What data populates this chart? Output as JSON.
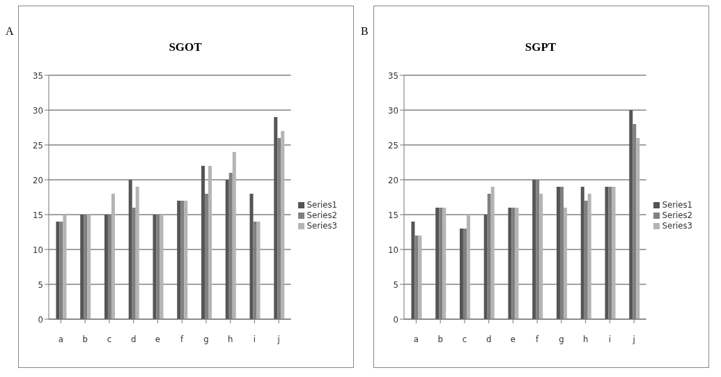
{
  "chart_data": [
    {
      "type": "bar",
      "title": "SGOT",
      "annotations": [
        "A"
      ],
      "categories": [
        "a",
        "b",
        "c",
        "d",
        "e",
        "f",
        "g",
        "h",
        "i",
        "j"
      ],
      "series": [
        {
          "name": "Series1",
          "color": "#555555",
          "values": [
            14,
            15,
            15,
            20,
            15,
            17,
            22,
            20,
            18,
            29
          ]
        },
        {
          "name": "Series2",
          "color": "#808080",
          "values": [
            14,
            15,
            15,
            16,
            15,
            17,
            18,
            21,
            14,
            26
          ]
        },
        {
          "name": "Series3",
          "color": "#b4b4b4",
          "values": [
            15,
            15,
            18,
            19,
            15,
            17,
            22,
            24,
            14,
            27
          ]
        }
      ],
      "ylim": [
        0,
        35
      ],
      "yticks": [
        0,
        5,
        10,
        15,
        20,
        25,
        30,
        35
      ],
      "grid": "y",
      "legend": "right"
    },
    {
      "type": "bar",
      "title": "SGPT",
      "annotations": [
        "B"
      ],
      "categories": [
        "a",
        "b",
        "c",
        "d",
        "e",
        "f",
        "g",
        "h",
        "i",
        "j"
      ],
      "series": [
        {
          "name": "Series1",
          "color": "#555555",
          "values": [
            14,
            16,
            13,
            15,
            16,
            20,
            19,
            19,
            19,
            30
          ]
        },
        {
          "name": "Series2",
          "color": "#808080",
          "values": [
            12,
            16,
            13,
            18,
            16,
            20,
            19,
            17,
            19,
            28
          ]
        },
        {
          "name": "Series3",
          "color": "#b4b4b4",
          "values": [
            12,
            16,
            15,
            19,
            16,
            18,
            16,
            18,
            19,
            26
          ]
        }
      ],
      "ylim": [
        0,
        35
      ],
      "yticks": [
        0,
        5,
        10,
        15,
        20,
        25,
        30,
        35
      ],
      "grid": "y",
      "legend": "right"
    }
  ]
}
